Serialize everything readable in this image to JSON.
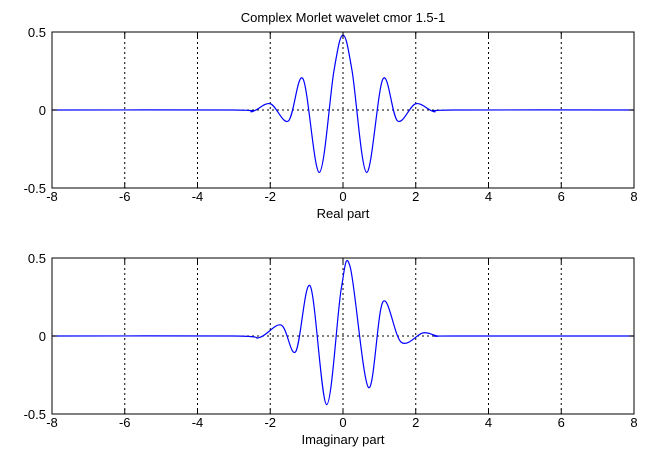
{
  "chart_data": [
    {
      "type": "line",
      "title": "Complex Morlet wavelet cmor 1.5-1",
      "xlabel": "Real part",
      "ylabel": "",
      "xlim": [
        -8,
        8
      ],
      "ylim": [
        -0.5,
        0.5
      ],
      "xticks": [
        -8,
        -6,
        -4,
        -2,
        0,
        2,
        4,
        6,
        8
      ],
      "xtick_labels": [
        "-8",
        "-6",
        "-4",
        "-2",
        "0",
        "2",
        "4",
        "6",
        "8"
      ],
      "yticks": [
        -0.5,
        0,
        0.5
      ],
      "ytick_labels": [
        "-0.5",
        "0",
        "0.5"
      ],
      "grid": "dotted",
      "line_color": "#0000ff",
      "series": [
        {
          "x": [
            -8,
            -3,
            -2.5,
            -2.0,
            -1.5,
            -1.1,
            -0.65,
            -0.25,
            0,
            0.25,
            0.65,
            1.1,
            1.5,
            2.0,
            2.5,
            3,
            8
          ],
          "values": [
            0,
            0,
            -0.01,
            0.04,
            -0.07,
            0.2,
            -0.4,
            0.25,
            0.48,
            0.25,
            -0.4,
            0.2,
            -0.07,
            0.04,
            -0.01,
            0,
            0
          ]
        }
      ]
    },
    {
      "type": "line",
      "title": "",
      "xlabel": "Imaginary part",
      "ylabel": "",
      "xlim": [
        -8,
        8
      ],
      "ylim": [
        -0.5,
        0.5
      ],
      "xticks": [
        -8,
        -6,
        -4,
        -2,
        0,
        2,
        4,
        6,
        8
      ],
      "xtick_labels": [
        "-8",
        "-6",
        "-4",
        "-2",
        "0",
        "2",
        "4",
        "6",
        "8"
      ],
      "yticks": [
        -0.5,
        0,
        0.5
      ],
      "ytick_labels": [
        "-0.5",
        "0",
        "0.5"
      ],
      "grid": "dotted",
      "line_color": "#0000ff",
      "series": [
        {
          "x": [
            -8,
            -3,
            -2.3,
            -1.7,
            -1.3,
            -0.9,
            -0.45,
            -0.05,
            0.2,
            0.7,
            1.1,
            1.6,
            2.2,
            2.6,
            3,
            8
          ],
          "values": [
            0,
            0,
            -0.01,
            0.07,
            -0.1,
            0.32,
            -0.44,
            0.3,
            0.44,
            -0.33,
            0.22,
            -0.04,
            0.02,
            0,
            0,
            0
          ]
        }
      ]
    }
  ]
}
